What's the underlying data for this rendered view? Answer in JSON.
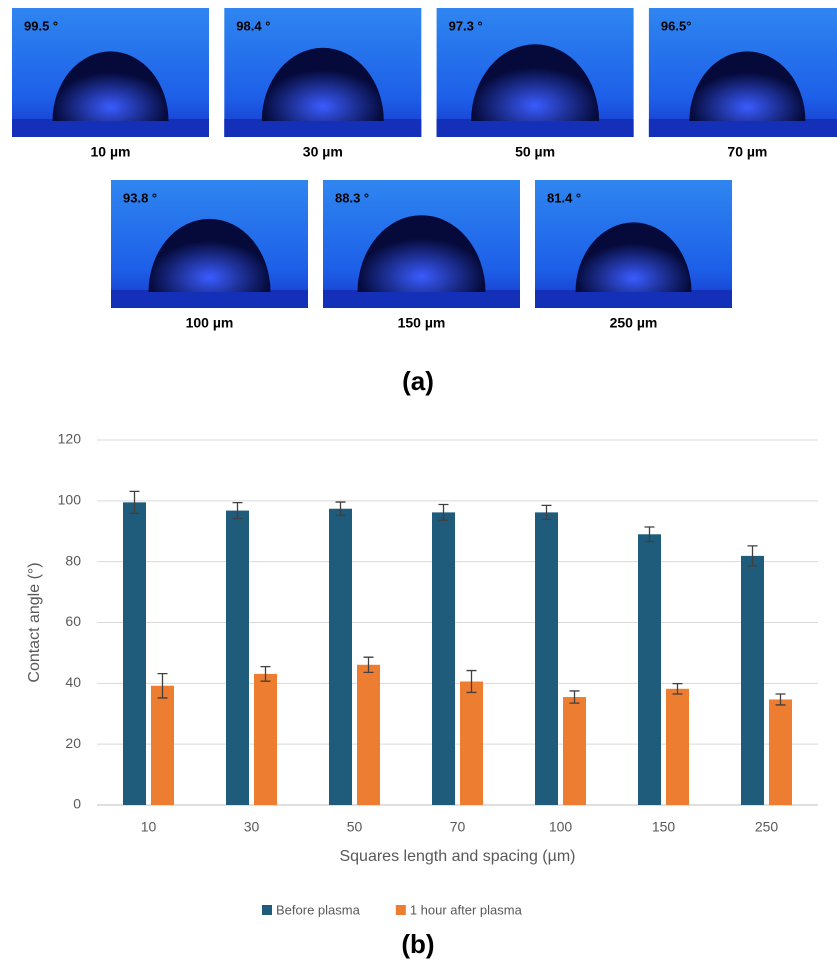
{
  "photos": [
    {
      "angle": "99.5 °",
      "label": "10 µm"
    },
    {
      "angle": "98.4 °",
      "label": "30 µm"
    },
    {
      "angle": "97.3 °",
      "label": "50 µm"
    },
    {
      "angle": "96.5°",
      "label": "70 µm"
    },
    {
      "angle": "93.8 °",
      "label": "100 µm"
    },
    {
      "angle": "88.3 °",
      "label": "150 µm"
    },
    {
      "angle": "81.4 °",
      "label": "250 µm"
    }
  ],
  "panel_a": "(a)",
  "chart_data": {
    "type": "bar",
    "panel_label": "(b)",
    "x_label": "Squares length and spacing (µm)",
    "y_label": "Contact angle (°)",
    "categories": [
      "10",
      "30",
      "50",
      "70",
      "100",
      "150",
      "250"
    ],
    "series": [
      {
        "name": "Before plasma",
        "color": "#1f5b7a",
        "values": [
          99.5,
          96.8,
          97.4,
          96.2,
          96.2,
          89.0,
          81.9
        ],
        "errors": [
          3.6,
          2.6,
          2.2,
          2.6,
          2.3,
          2.4,
          3.3
        ]
      },
      {
        "name": "1 hour after plasma",
        "color": "#ed7d31",
        "values": [
          39.2,
          43.1,
          46.1,
          40.6,
          35.5,
          38.2,
          34.7
        ],
        "errors": [
          4.0,
          2.4,
          2.5,
          3.6,
          2.0,
          1.7,
          1.8
        ]
      }
    ],
    "ylim": [
      0,
      120
    ],
    "yticks": [
      0,
      20,
      40,
      60,
      80,
      100,
      120
    ],
    "grid": true,
    "legend": "bottom"
  }
}
